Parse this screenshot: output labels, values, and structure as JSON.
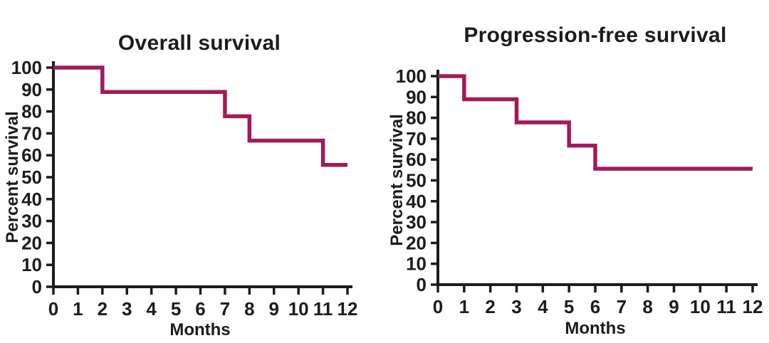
{
  "figure": {
    "background_color": "#ffffff",
    "curve_color": "#A3195C",
    "axis_color": "#1c1c1c",
    "text_color": "#1c1c1c"
  },
  "chart_data": [
    {
      "type": "line",
      "subtype": "kaplan-meier-step",
      "title": "Overall survival",
      "xlabel": "Months",
      "ylabel": "Percent survival",
      "xlim": [
        0,
        12
      ],
      "ylim": [
        0,
        100
      ],
      "x_ticks": [
        0,
        1,
        2,
        3,
        4,
        5,
        6,
        7,
        8,
        9,
        10,
        11,
        12
      ],
      "y_ticks": [
        0,
        10,
        20,
        30,
        40,
        50,
        60,
        70,
        80,
        90,
        100
      ],
      "grid": false,
      "legend": false,
      "series": [
        {
          "name": "Overall survival",
          "color": "#A3195C",
          "step": "after",
          "x": [
            0,
            2,
            7,
            8,
            11
          ],
          "y": [
            100,
            88.9,
            77.8,
            66.7,
            55.6
          ],
          "x_end": 12
        }
      ]
    },
    {
      "type": "line",
      "subtype": "kaplan-meier-step",
      "title": "Progression-free survival",
      "xlabel": "Months",
      "ylabel": "Percent survival",
      "xlim": [
        0,
        12
      ],
      "ylim": [
        0,
        100
      ],
      "x_ticks": [
        0,
        1,
        2,
        3,
        4,
        5,
        6,
        7,
        8,
        9,
        10,
        11,
        12
      ],
      "y_ticks": [
        0,
        10,
        20,
        30,
        40,
        50,
        60,
        70,
        80,
        90,
        100
      ],
      "grid": false,
      "legend": false,
      "series": [
        {
          "name": "Progression-free survival",
          "color": "#A3195C",
          "step": "after",
          "x": [
            0,
            1,
            3,
            5,
            6
          ],
          "y": [
            100,
            88.9,
            77.8,
            66.7,
            55.6
          ],
          "x_end": 12
        }
      ]
    }
  ]
}
